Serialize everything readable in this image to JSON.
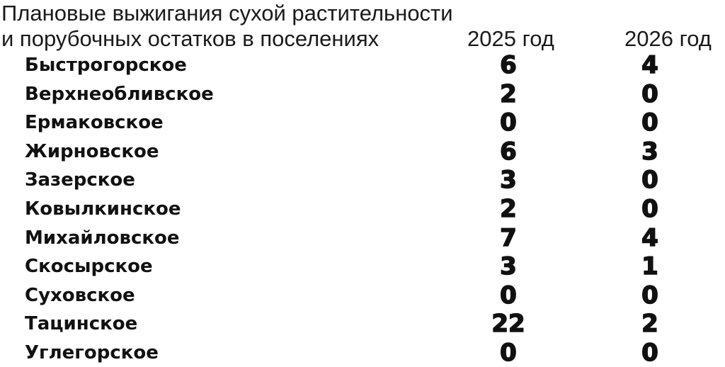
{
  "header": {
    "title_line1": "Плановые выжигания сухой растительности",
    "title_line2": "и порубочных остатков в поселениях",
    "col_2025": "2025 год",
    "col_2026": "2026 год"
  },
  "rows": [
    {
      "name": "Быстрогорское",
      "y2025": "6",
      "y2026": "4"
    },
    {
      "name": "Верхнеобливское",
      "y2025": "2",
      "y2026": "0"
    },
    {
      "name": "Ермаковское",
      "y2025": "0",
      "y2026": "0"
    },
    {
      "name": "Жирновское",
      "y2025": "6",
      "y2026": "3"
    },
    {
      "name": "Зазерское",
      "y2025": "3",
      "y2026": "0"
    },
    {
      "name": "Ковылкинское",
      "y2025": "2",
      "y2026": "0"
    },
    {
      "name": "Михайловское",
      "y2025": "7",
      "y2026": "4"
    },
    {
      "name": "Скосырское",
      "y2025": "3",
      "y2026": "1"
    },
    {
      "name": "Суховское",
      "y2025": "0",
      "y2026": "0"
    },
    {
      "name": "Тацинское",
      "y2025": "22",
      "y2026": "2"
    },
    {
      "name": "Углегорское",
      "y2025": "0",
      "y2026": "0"
    }
  ]
}
